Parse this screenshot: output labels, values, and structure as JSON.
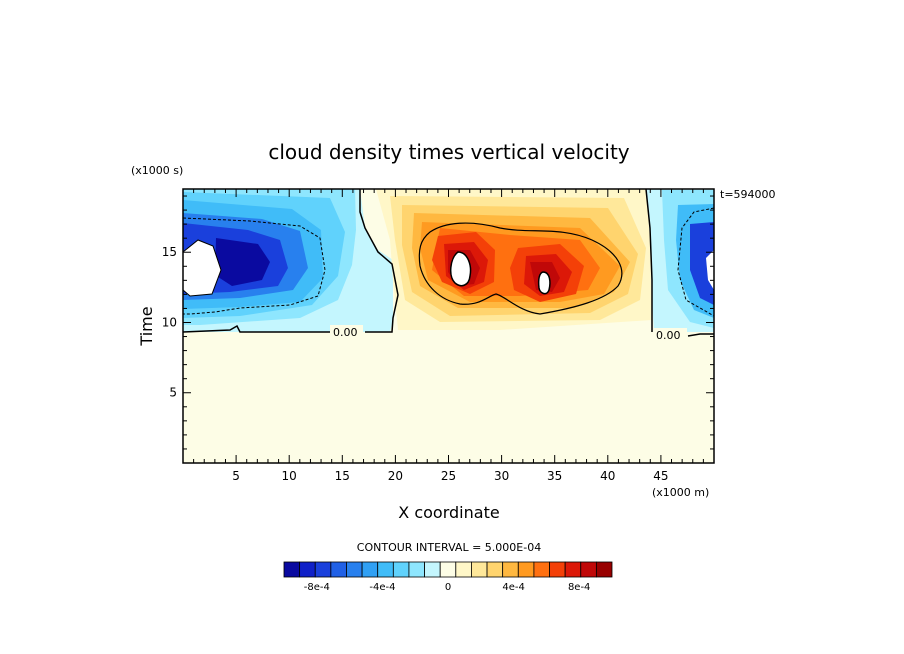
{
  "chart_data": {
    "type": "heatmap",
    "title": "cloud density times vertical velocity",
    "xlabel": "X coordinate",
    "ylabel": "Time",
    "x_unit": "(x1000 m)",
    "y_unit": "(x1000 s)",
    "time_stamp": "t=594000",
    "contour_interval": "CONTOUR INTERVAL = 5.000E-04",
    "xlim": [
      0,
      50
    ],
    "ylim": [
      0,
      19.5
    ],
    "x_ticks": [
      5,
      10,
      15,
      20,
      25,
      30,
      35,
      40,
      45
    ],
    "y_ticks": [
      5,
      10,
      15
    ],
    "zero_contour_labels": [
      "0.00",
      "0.00"
    ],
    "colorbar": {
      "levels": [
        -0.001,
        -0.0009,
        -0.0008,
        -0.0007,
        -0.0006,
        -0.0005,
        -0.0004,
        -0.0003,
        -0.0002,
        -0.0001,
        0,
        0.0001,
        0.0002,
        0.0003,
        0.0004,
        0.0005,
        0.0006,
        0.0007,
        0.0008,
        0.0009,
        0.001
      ],
      "colors": [
        "#0a0aa0",
        "#1020c8",
        "#1a40dc",
        "#2060e6",
        "#2880ee",
        "#30a0f4",
        "#40bcf8",
        "#60d2fc",
        "#8ee6fe",
        "#c4f6fe",
        "#fdfde6",
        "#fff7c8",
        "#ffe89a",
        "#ffd46e",
        "#ffb840",
        "#ff9a20",
        "#ff7010",
        "#f44008",
        "#dc1808",
        "#c00808",
        "#980000"
      ],
      "tick_labels": [
        "-8e-4",
        "-4e-4",
        "0",
        "4e-4",
        "8e-4"
      ],
      "tick_values": [
        -0.0008,
        -0.0004,
        0,
        0.0004,
        0.0008
      ]
    },
    "cells": [
      {
        "x": 2.5,
        "y": 13.8,
        "v": -0.0008
      },
      {
        "x": 6,
        "y": 14.3,
        "v": -0.0009
      },
      {
        "x": 10,
        "y": 14.5,
        "v": -0.0007
      },
      {
        "x": 45.5,
        "y": 14.8,
        "v": -0.0002
      },
      {
        "x": 48.5,
        "y": 14.2,
        "v": -0.0008
      },
      {
        "x": 26,
        "y": 14.2,
        "v": 0.0009
      },
      {
        "x": 34.2,
        "y": 13.5,
        "v": 0.0008
      },
      {
        "x": 30.5,
        "y": 14.5,
        "v": 0.0005
      }
    ]
  }
}
